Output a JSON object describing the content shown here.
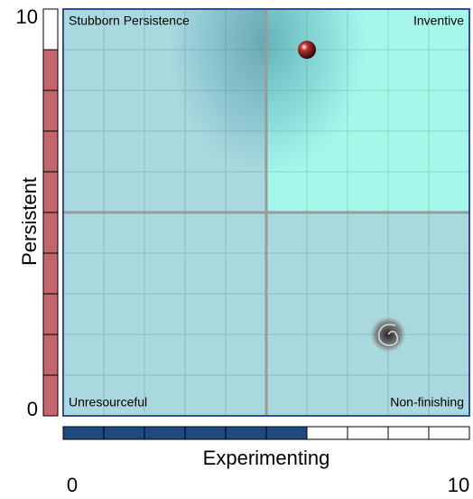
{
  "chart_data": {
    "type": "quadrant",
    "x_label": "Experimenting",
    "y_label": "Persistent",
    "xlim": [
      0,
      10
    ],
    "ylim": [
      0,
      10
    ],
    "xticks": [
      0,
      10
    ],
    "yticks": [
      0,
      10
    ],
    "grid": true,
    "grid_divisions": 10,
    "divider": {
      "x": 5,
      "y": 5
    },
    "quadrants": {
      "top_left": "Stubborn Persistence",
      "top_right": "Inventive",
      "bottom_left": "Unresourceful",
      "bottom_right": "Non-finishing"
    },
    "highlight": "top_right",
    "colors": {
      "plot": "#a9d9de",
      "highlight": "#a6f6ec",
      "border": "#2d4f9e"
    },
    "points": [
      {
        "x": 6,
        "y": 9,
        "marker": "ball"
      },
      {
        "x": 8,
        "y": 2,
        "marker": "spiral"
      }
    ],
    "y_meter": {
      "value": 9,
      "color": "#c4646b"
    },
    "x_meter": {
      "value": 6,
      "color": "#1f4a80"
    }
  }
}
